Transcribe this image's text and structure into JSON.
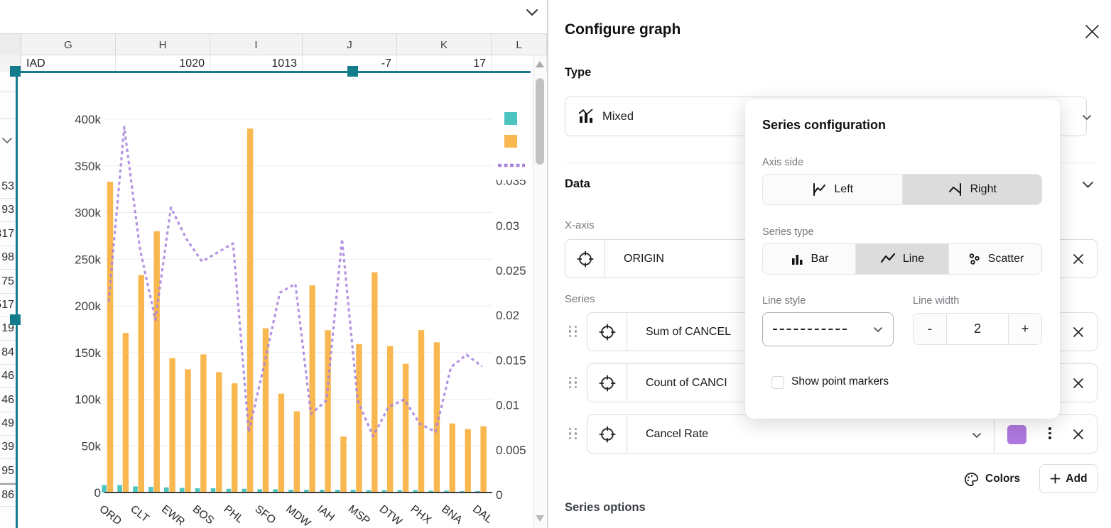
{
  "spreadsheet": {
    "column_headers": [
      "G",
      "H",
      "I",
      "J",
      "K",
      "L"
    ],
    "row1": [
      "IAD",
      "1020",
      "1013",
      "-7",
      "17",
      ""
    ],
    "left_clipped_values": [
      "53",
      "93",
      "317",
      "98",
      "75",
      "517",
      "19",
      "84",
      "46",
      "46",
      "49",
      "39",
      "95",
      "86"
    ]
  },
  "panel": {
    "title": "Configure graph",
    "type_label": "Type",
    "type_value": "Mixed",
    "data_label": "Data",
    "x_axis_label": "X-axis",
    "x_axis_value": "ORIGIN",
    "series_label": "Series",
    "series_rows": [
      {
        "name": "Sum of CANCEL"
      },
      {
        "name": "Count of CANCI"
      },
      {
        "name": "Cancel Rate",
        "color": "#ae77dd"
      }
    ],
    "colors_label": "Colors",
    "add_label": "Add",
    "series_options_label": "Series options"
  },
  "popover": {
    "title": "Series configuration",
    "axis_side_label": "Axis side",
    "axis_left": "Left",
    "axis_right": "Right",
    "series_type_label": "Series type",
    "type_bar": "Bar",
    "type_line": "Line",
    "type_scatter": "Scatter",
    "line_style_label": "Line style",
    "line_width_label": "Line width",
    "line_width_value": "2",
    "minus": "-",
    "plus": "+",
    "show_point_markers": "Show point markers"
  },
  "colors": {
    "teal_series": "#4cc5c0",
    "orange_series": "#f9b750",
    "purple_line": "#a883dd",
    "selection_teal": "#127c8c"
  },
  "chart_data": {
    "type": "mixed",
    "categories": [
      "ORD",
      "",
      "CLT",
      "",
      "EWR",
      "",
      "BOS",
      "",
      "PHL",
      "",
      "SFO",
      "",
      "MDW",
      "",
      "IAH",
      "",
      "MSP",
      "",
      "DTW",
      "",
      "PHX",
      "",
      "BNA",
      "",
      "DAL"
    ],
    "series": [
      {
        "name": "Sum of CANCEL",
        "type": "bar",
        "axis": "left",
        "color": "#4cc5c0",
        "values": [
          8000,
          8000,
          6500,
          6000,
          5500,
          5000,
          4500,
          4500,
          4000,
          4000,
          3500,
          3500,
          3000,
          3000,
          3000,
          3000,
          3000,
          2500,
          2500,
          2500,
          2500,
          2000,
          2000,
          1500,
          1500
        ]
      },
      {
        "name": "Count of CANCI",
        "type": "bar",
        "axis": "left",
        "color": "#f9b750",
        "values": [
          333000,
          171000,
          233000,
          280000,
          144000,
          132000,
          148000,
          129000,
          117000,
          390000,
          176000,
          106000,
          87000,
          222000,
          174000,
          60000,
          159000,
          236000,
          157000,
          138000,
          174000,
          161000,
          74000,
          68000,
          71000
        ]
      },
      {
        "name": "Cancel Rate",
        "type": "line",
        "axis": "right",
        "dashed": true,
        "color": "#a883dd",
        "values": [
          0.0215,
          0.041,
          0.0275,
          0.0195,
          0.032,
          0.0285,
          0.026,
          0.027,
          0.028,
          0.007,
          0.0145,
          0.0225,
          0.0235,
          0.009,
          0.0105,
          0.0285,
          0.0105,
          0.0065,
          0.0098,
          0.0106,
          0.0079,
          0.007,
          0.0142,
          0.0156,
          0.0143
        ]
      }
    ],
    "left_axis": {
      "ticks": [
        {
          "label": "400k",
          "v": 400000
        },
        {
          "label": "350k",
          "v": 350000
        },
        {
          "label": "300k",
          "v": 300000
        },
        {
          "label": "250k",
          "v": 250000
        },
        {
          "label": "200k",
          "v": 200000
        },
        {
          "label": "150k",
          "v": 150000
        },
        {
          "label": "100k",
          "v": 100000
        },
        {
          "label": "50k",
          "v": 50000
        },
        {
          "label": "0",
          "v": 0
        }
      ]
    },
    "right_axis": {
      "ticks": [
        {
          "label": "0.035",
          "v": 0.035,
          "clipped": true
        },
        {
          "label": "0.03",
          "v": 0.03
        },
        {
          "label": "0.025",
          "v": 0.025
        },
        {
          "label": "0.02",
          "v": 0.02
        },
        {
          "label": "0.015",
          "v": 0.015
        },
        {
          "label": "0.01",
          "v": 0.01
        },
        {
          "label": "0.005",
          "v": 0.005
        },
        {
          "label": "0",
          "v": 0
        }
      ]
    },
    "legend_position": "top-right",
    "grid": true
  }
}
